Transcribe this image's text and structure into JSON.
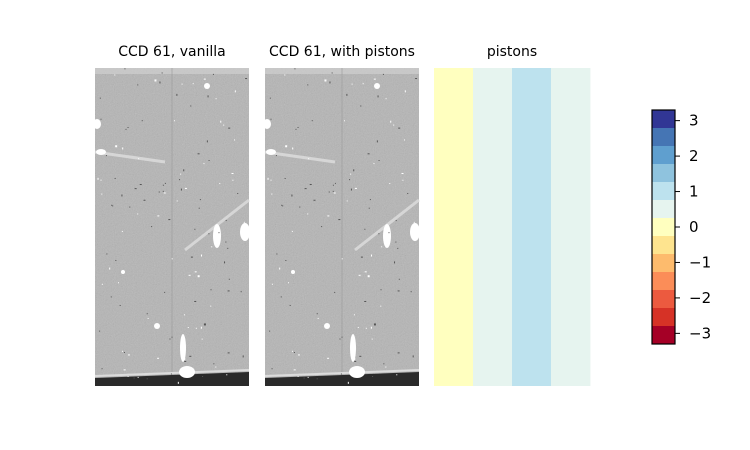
{
  "chart_data": {
    "type": "heatmap",
    "panels": [
      {
        "title": "CCD 61, vanilla",
        "kind": "image"
      },
      {
        "title": "CCD 61, with pistons",
        "kind": "image"
      },
      {
        "title": "pistons",
        "kind": "piston-map",
        "column_values": [
          0.2,
          0.6,
          1.0,
          0.6
        ]
      }
    ],
    "colorbar": {
      "ticks": [
        "3",
        "2",
        "1",
        "0",
        "−1",
        "−2",
        "−3"
      ],
      "tick_values": [
        3,
        2,
        1,
        0,
        -1,
        -2,
        -3
      ],
      "range": [
        -3.3,
        3.3
      ],
      "colors": [
        "#313695",
        "#4575b4",
        "#5f9fcf",
        "#8fc3de",
        "#bde2ee",
        "#e6f4ef",
        "#ffffbf",
        "#fee48f",
        "#fdbb6d",
        "#fb8d58",
        "#ec5a3f",
        "#d63226",
        "#a50026"
      ]
    },
    "image_color": "#b5b5b5"
  }
}
